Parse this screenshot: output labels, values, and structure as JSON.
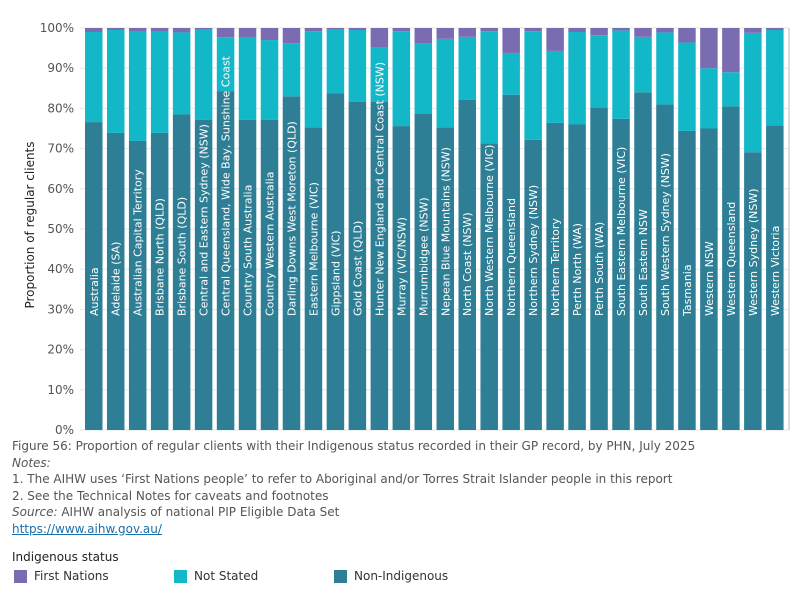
{
  "chart_data": {
    "type": "bar",
    "stacked": true,
    "ylabel": "Proportion of regular clients",
    "ylim": [
      0,
      100
    ],
    "yticks": [
      "0%",
      "10%",
      "20%",
      "30%",
      "40%",
      "50%",
      "60%",
      "70%",
      "80%",
      "90%",
      "100%"
    ],
    "categories": [
      "Australia",
      "Adelaide (SA)",
      "Australian Capital Territory",
      "Brisbane North (QLD)",
      "Brisbane South (QLD)",
      "Central and Eastern Sydney (NSW)",
      "Central Queensland, Wide Bay, Sunshine Coast",
      "Country South Australia",
      "Country Western Australia",
      "Darling Downs West Moreton (QLD)",
      "Eastern Melbourne (VIC)",
      "Gippsland (VIC)",
      "Gold Coast (QLD)",
      "Hunter New England and Central Coast (NSW)",
      "Murray (VIC/NSW)",
      "Murrumbidgee (NSW)",
      "Nepean Blue Mountains (NSW)",
      "North Coast (NSW)",
      "North Western Melbourne (VIC)",
      "Northern Queensland",
      "Northern Sydney (NSW)",
      "Northern Territory",
      "Perth North (WA)",
      "Perth South (WA)",
      "South Eastern Melbourne (VIC)",
      "South Eastern NSW",
      "South Western Sydney (NSW)",
      "Tasmania",
      "Western NSW",
      "Western Queensland",
      "Western Sydney (NSW)",
      "Western Victoria"
    ],
    "series": [
      {
        "name": "Non-Indigenous",
        "color": "#2e7f95",
        "values": [
          76.6,
          73.9,
          71.9,
          73.9,
          78.5,
          77.2,
          84.2,
          77.2,
          77.2,
          83.0,
          75.3,
          83.7,
          81.6,
          81.6,
          75.6,
          78.7,
          75.3,
          82.1,
          71.3,
          83.4,
          72.2,
          76.4,
          76.0,
          80.2,
          77.4,
          84.0,
          81.0,
          74.4,
          75.0,
          80.5,
          69.1,
          75.8
        ]
      },
      {
        "name": "Not Stated",
        "color": "#12b7c8",
        "values": [
          22.4,
          25.6,
          27.2,
          25.2,
          20.4,
          22.4,
          13.5,
          20.4,
          19.8,
          13.2,
          23.9,
          15.9,
          17.9,
          13.5,
          23.6,
          17.4,
          22.0,
          15.7,
          27.9,
          10.4,
          27.0,
          17.9,
          23.0,
          18.0,
          22.0,
          13.8,
          17.9,
          22.0,
          15.0,
          8.5,
          29.7,
          23.7
        ]
      },
      {
        "name": "First Nations",
        "color": "#7b6bb0",
        "values": [
          1.0,
          0.5,
          0.9,
          0.9,
          1.1,
          0.4,
          2.3,
          2.4,
          3.0,
          3.8,
          0.8,
          0.4,
          0.5,
          4.9,
          0.8,
          3.9,
          2.7,
          2.2,
          0.8,
          6.2,
          0.8,
          5.7,
          1.0,
          1.8,
          0.6,
          2.2,
          1.1,
          3.6,
          10.0,
          11.0,
          1.2,
          0.5
        ]
      }
    ]
  },
  "notes": {
    "caption": "Figure 56: Proportion of regular clients with their Indigenous status recorded in their GP record, by PHN, July 2025",
    "notes_label": "Notes:",
    "note1": "1. The AIHW uses ‘First Nations people’ to refer to Aboriginal and/or Torres Strait Islander people in this report",
    "note2": "2. See the Technical Notes for caveats and footnotes",
    "source_label": "Source:",
    "source_text": " AIHW analysis of national PIP Eligible Data Set",
    "link": "https://www.aihw.gov.au/"
  },
  "legend": {
    "title": "Indigenous status",
    "items": [
      {
        "label": "First Nations",
        "color": "#7b6bb0"
      },
      {
        "label": "Not Stated",
        "color": "#12b7c8"
      },
      {
        "label": "Non-Indigenous",
        "color": "#2e7f95"
      }
    ]
  }
}
